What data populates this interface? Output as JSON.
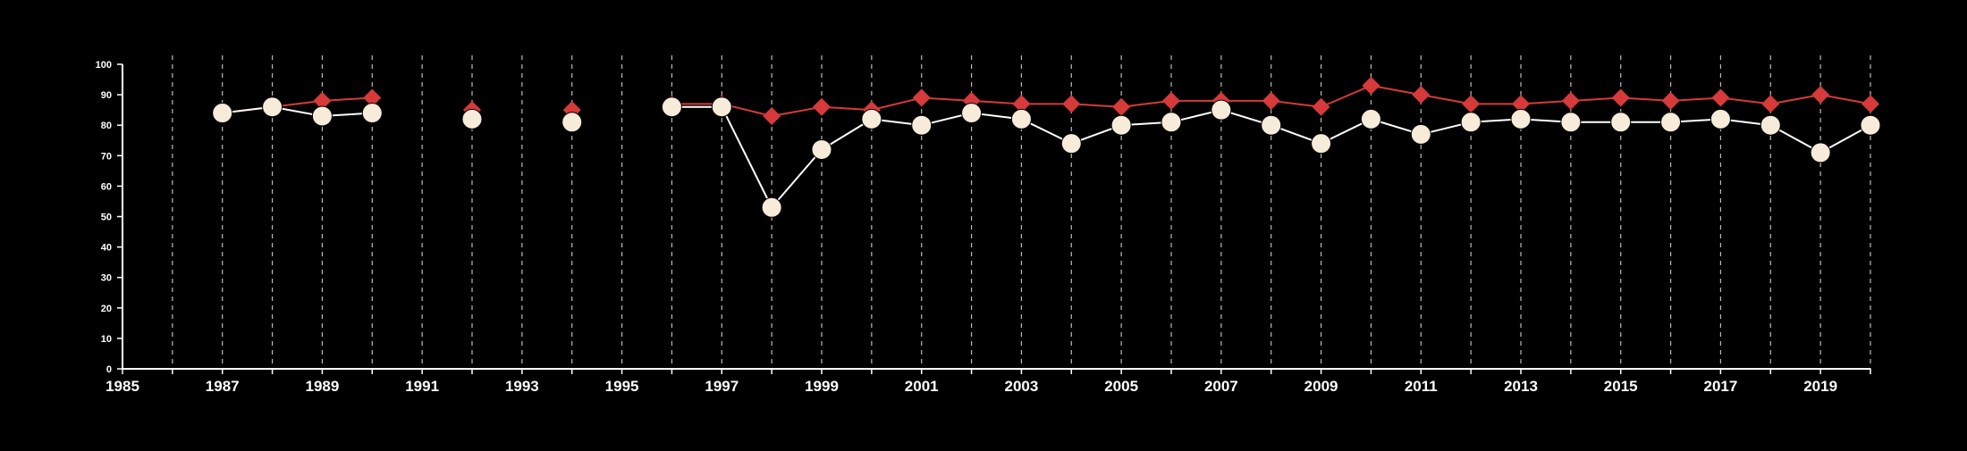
{
  "chart_data": {
    "type": "line",
    "title": "",
    "xlabel": "",
    "ylabel": "",
    "xlim": [
      1985,
      2020
    ],
    "ylim": [
      0,
      100
    ],
    "x_ticks": [
      1985,
      1987,
      1989,
      1991,
      1993,
      1995,
      1997,
      1999,
      2001,
      2003,
      2005,
      2007,
      2009,
      2011,
      2013,
      2015,
      2017,
      2019
    ],
    "y_ticks": [
      0,
      10,
      20,
      30,
      40,
      50,
      60,
      70,
      80,
      90,
      100
    ],
    "grid": "vertical dashed lines at each year",
    "legend": "none",
    "series": [
      {
        "color": "#d63a3a",
        "marker": "diamond",
        "points": [
          [
            1987,
            84
          ],
          [
            1988,
            86
          ],
          [
            1989,
            88
          ],
          [
            1990,
            89
          ],
          [
            1992,
            85
          ],
          [
            1994,
            85
          ],
          [
            1996,
            87
          ],
          [
            1997,
            87
          ],
          [
            1998,
            83
          ],
          [
            1999,
            86
          ],
          [
            2000,
            85
          ],
          [
            2001,
            89
          ],
          [
            2002,
            88
          ],
          [
            2003,
            87
          ],
          [
            2004,
            87
          ],
          [
            2005,
            86
          ],
          [
            2006,
            88
          ],
          [
            2007,
            88
          ],
          [
            2008,
            88
          ],
          [
            2009,
            86
          ],
          [
            2010,
            93
          ],
          [
            2011,
            90
          ],
          [
            2012,
            87
          ],
          [
            2013,
            87
          ],
          [
            2014,
            88
          ],
          [
            2015,
            89
          ],
          [
            2016,
            88
          ],
          [
            2017,
            89
          ],
          [
            2018,
            87
          ],
          [
            2019,
            90
          ],
          [
            2020,
            87
          ]
        ]
      },
      {
        "color": "#f7ecd9",
        "line_color": "#ffffff",
        "marker": "circle",
        "points": [
          [
            1987,
            84
          ],
          [
            1988,
            86
          ],
          [
            1989,
            83
          ],
          [
            1990,
            84
          ],
          [
            1992,
            82
          ],
          [
            1994,
            81
          ],
          [
            1996,
            86
          ],
          [
            1997,
            86
          ],
          [
            1998,
            53
          ],
          [
            1999,
            72
          ],
          [
            2000,
            82
          ],
          [
            2001,
            80
          ],
          [
            2002,
            84
          ],
          [
            2003,
            82
          ],
          [
            2004,
            74
          ],
          [
            2005,
            80
          ],
          [
            2006,
            81
          ],
          [
            2007,
            85
          ],
          [
            2008,
            80
          ],
          [
            2009,
            74
          ],
          [
            2010,
            82
          ],
          [
            2011,
            77
          ],
          [
            2012,
            81
          ],
          [
            2013,
            82
          ],
          [
            2014,
            81
          ],
          [
            2015,
            81
          ],
          [
            2016,
            81
          ],
          [
            2017,
            82
          ],
          [
            2018,
            80
          ],
          [
            2019,
            71
          ],
          [
            2020,
            80
          ]
        ]
      }
    ]
  }
}
